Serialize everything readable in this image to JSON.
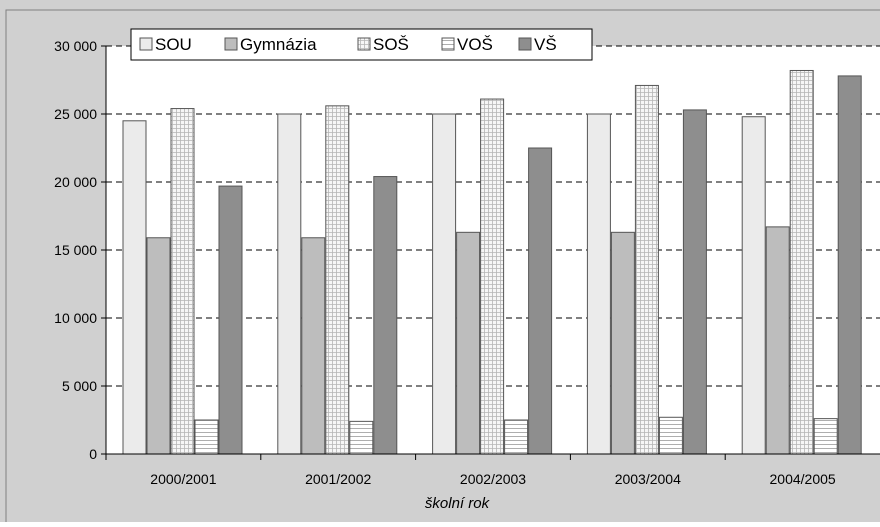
{
  "chart_data": {
    "type": "bar",
    "title": "",
    "xlabel": "školní rok",
    "ylabel": "",
    "ylim": [
      0,
      30000
    ],
    "yticks": [
      0,
      5000,
      10000,
      15000,
      20000,
      25000,
      30000
    ],
    "ytick_labels": [
      "0",
      "5 000",
      "10 000",
      "15 000",
      "20 000",
      "25 000",
      "30 000"
    ],
    "categories": [
      "2000/2001",
      "2001/2002",
      "2002/2003",
      "2003/2004",
      "2004/2005"
    ],
    "series": [
      {
        "name": "SOU",
        "values": [
          24500,
          25000,
          25000,
          25000,
          24800
        ]
      },
      {
        "name": "Gymnázia",
        "values": [
          15900,
          15900,
          16300,
          16300,
          16700
        ]
      },
      {
        "name": "SOŠ",
        "values": [
          25400,
          25600,
          26100,
          27100,
          28200
        ]
      },
      {
        "name": "VOŠ",
        "values": [
          2500,
          2400,
          2500,
          2700,
          2600
        ]
      },
      {
        "name": "VŠ",
        "values": [
          19700,
          20400,
          22500,
          25300,
          27800
        ]
      }
    ],
    "legend_position": "top",
    "grid": true,
    "grid_style": "dashed"
  },
  "colors": {
    "background": "#d0d0d0",
    "plot_background": "#ffffff",
    "SOU": "#ebebeb",
    "Gymnázia": "#bdbdbd",
    "SOŠ": "#f6f6f6",
    "VOŠ": "#ffffff",
    "VŠ": "#8e8e8e"
  }
}
